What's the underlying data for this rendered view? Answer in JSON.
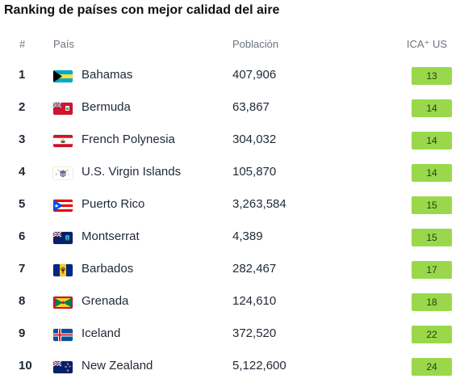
{
  "title": "Ranking de países con mejor calidad del aire",
  "columns": {
    "rank": "#",
    "country": "País",
    "population": "Población",
    "aqi": "ICA⁺ US"
  },
  "colors": {
    "aqi_good": "#9ad84b"
  },
  "rows": [
    {
      "rank": "1",
      "country": "Bahamas",
      "flag": "bahamas-flag-icon",
      "population": "407,906",
      "aqi": "13"
    },
    {
      "rank": "2",
      "country": "Bermuda",
      "flag": "bermuda-flag-icon",
      "population": "63,867",
      "aqi": "14"
    },
    {
      "rank": "3",
      "country": "French Polynesia",
      "flag": "french-polynesia-flag-icon",
      "population": "304,032",
      "aqi": "14"
    },
    {
      "rank": "4",
      "country": "U.S. Virgin Islands",
      "flag": "us-virgin-islands-flag-icon",
      "population": "105,870",
      "aqi": "14"
    },
    {
      "rank": "5",
      "country": "Puerto Rico",
      "flag": "puerto-rico-flag-icon",
      "population": "3,263,584",
      "aqi": "15"
    },
    {
      "rank": "6",
      "country": "Montserrat",
      "flag": "montserrat-flag-icon",
      "population": "4,389",
      "aqi": "15"
    },
    {
      "rank": "7",
      "country": "Barbados",
      "flag": "barbados-flag-icon",
      "population": "282,467",
      "aqi": "17"
    },
    {
      "rank": "8",
      "country": "Grenada",
      "flag": "grenada-flag-icon",
      "population": "124,610",
      "aqi": "18"
    },
    {
      "rank": "9",
      "country": "Iceland",
      "flag": "iceland-flag-icon",
      "population": "372,520",
      "aqi": "22"
    },
    {
      "rank": "10",
      "country": "New Zealand",
      "flag": "new-zealand-flag-icon",
      "population": "5,122,600",
      "aqi": "24"
    }
  ]
}
